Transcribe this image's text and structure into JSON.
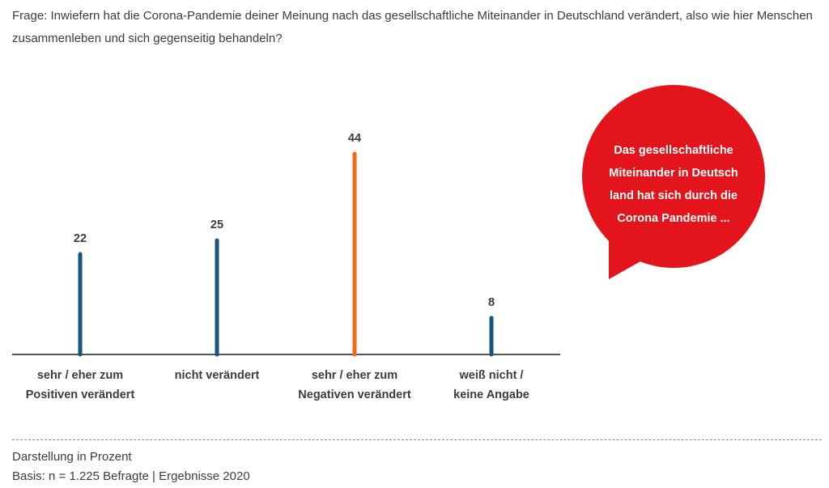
{
  "question": "Frage: Inwiefern hat die Corona-Pandemie deiner Meinung nach das gesellschaftliche Miteinander in Deutschland verändert, also wie hier Menschen zusammenleben und sich gegenseitig behandeln?",
  "bubble": {
    "lines": [
      "Das gesellschaftliche",
      "Miteinander in Deutsch",
      "land hat sich durch die",
      "Corona  Pandemie ..."
    ],
    "color": "#e3141b"
  },
  "chart_data": {
    "type": "bar",
    "categories": [
      [
        "sehr / eher zum",
        "Positiven verändert"
      ],
      [
        "nicht verändert"
      ],
      [
        "sehr / eher zum",
        "Negativen verändert"
      ],
      [
        "weiß nicht /",
        "keine Angabe"
      ]
    ],
    "values": [
      22,
      25,
      44,
      8
    ],
    "value_labels": [
      "22",
      "25",
      "44",
      "8"
    ],
    "colors": [
      "#1a5580",
      "#1a5580",
      "#f06a1e",
      "#1a5580"
    ],
    "ylim": [
      0,
      50
    ],
    "grid": false
  },
  "footer": {
    "note": "Darstellung in Prozent",
    "basis": "Basis: n = 1.225 Befragte | Ergebnisse 2020"
  }
}
